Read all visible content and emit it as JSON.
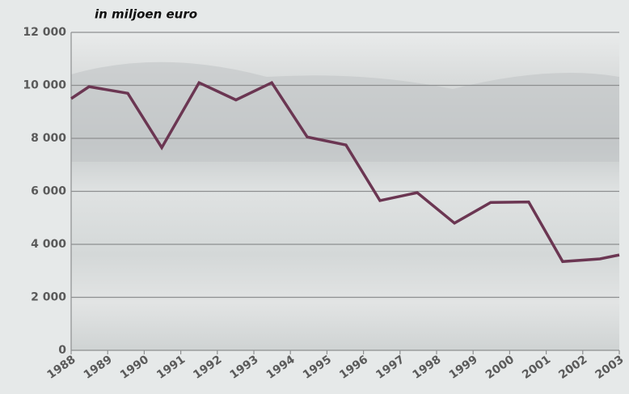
{
  "chart_data": {
    "type": "line",
    "title": "in miljoen euro",
    "x": [
      1988,
      1988.49,
      1989.55,
      1990.48,
      1991.5,
      1992.51,
      1993.49,
      1994.46,
      1995.52,
      1996.45,
      1997.47,
      1998.49,
      1999.48,
      2000.52,
      2001.45,
      2002.47,
      2003
    ],
    "series": [
      {
        "name": null,
        "color": "#6b3652",
        "values": [
          9500,
          9950,
          9700,
          7650,
          10100,
          9450,
          10100,
          8050,
          7750,
          5650,
          5950,
          4800,
          5580,
          5600,
          3350,
          3450,
          3600
        ]
      }
    ],
    "xlim": [
      1988,
      2003
    ],
    "xticks": [
      1988,
      1989,
      1990,
      1991,
      1992,
      1993,
      1994,
      1995,
      1996,
      1997,
      1998,
      1999,
      2000,
      2001,
      2002,
      2003
    ],
    "ylim": [
      0,
      12000
    ],
    "yticks": [
      0,
      {
        "value": 2000,
        "label": "2 000"
      },
      {
        "value": 4000,
        "label": "4 000"
      },
      {
        "value": 6000,
        "label": "6 000"
      },
      {
        "value": 8000,
        "label": "8 000"
      },
      {
        "value": 10000,
        "label": "10 000"
      },
      {
        "value": 12000,
        "label": "12 000"
      }
    ],
    "grid": true
  }
}
